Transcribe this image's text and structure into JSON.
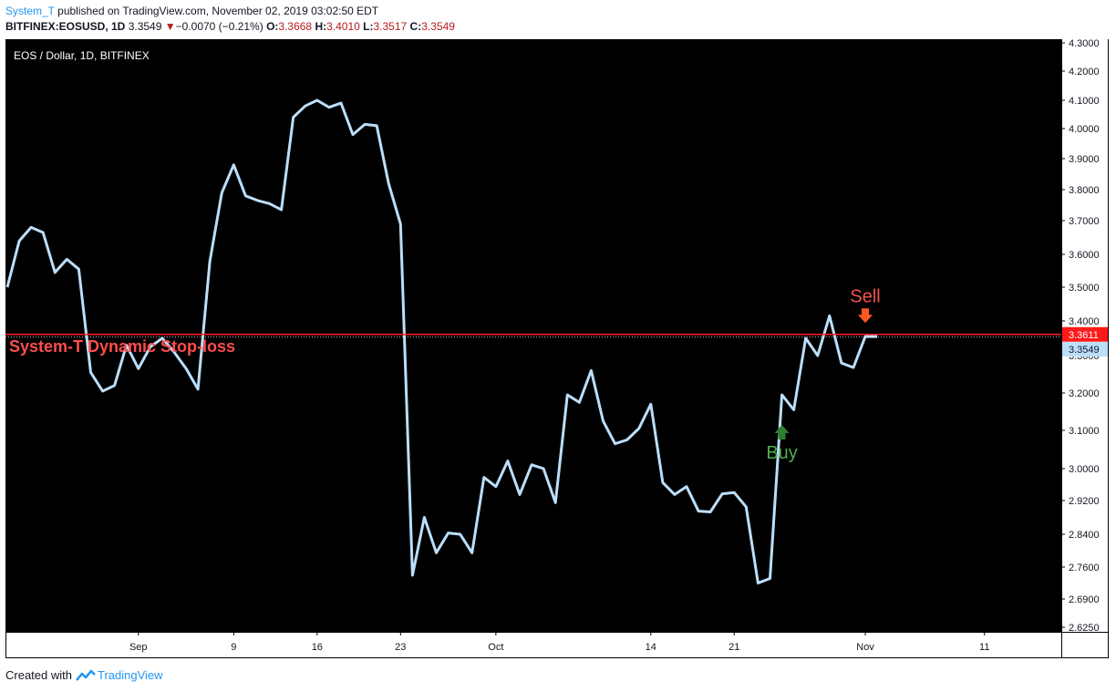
{
  "header": {
    "author": "System_T",
    "published_text": "published on TradingView.com, November 02, 2019 03:02:50 EDT",
    "symbol": "BITFINEX:EOSUSD, 1D",
    "last": "3.3549",
    "arrow": "▼",
    "change": "−0.0070 (−0.21%)",
    "o_label": "O:",
    "o_value": "3.3668",
    "h_label": "H:",
    "h_value": "3.4010",
    "l_label": "L:",
    "l_value": "3.3517",
    "c_label": "C:",
    "c_value": "3.3549"
  },
  "footer": {
    "created_with": "Created with",
    "brand": "TradingView"
  },
  "colors": {
    "background": "#000000",
    "line": "#bbdefb",
    "stoploss": "#ff1a1a",
    "sell": "#ef5350",
    "buy": "#4caf50",
    "axis_text": "#131722",
    "last_price_bg": "#bbdefb"
  },
  "chart_data": {
    "type": "line",
    "legend": "EOS / Dollar, 1D, BITFINEX",
    "y_ticks": [
      "4.3000",
      "4.2000",
      "4.1000",
      "4.0000",
      "3.9000",
      "3.8000",
      "3.7000",
      "3.6000",
      "3.5000",
      "3.4000",
      "3.3000",
      "3.2000",
      "3.1000",
      "3.0000",
      "2.9200",
      "2.8400",
      "2.7600",
      "2.6900",
      "2.6250"
    ],
    "x_ticks": [
      "Sep",
      "9",
      "16",
      "23",
      "Oct",
      "14",
      "21",
      "Nov",
      "11"
    ],
    "series": [
      {
        "values": [
          3.5,
          3.64,
          3.68,
          3.665,
          3.545,
          3.585,
          3.555,
          3.255,
          3.205,
          3.22,
          3.33,
          3.265,
          3.325,
          3.35,
          3.31,
          3.265,
          3.21,
          3.58,
          3.79,
          3.88,
          3.78,
          3.765,
          3.755,
          3.735,
          4.04,
          4.08,
          4.1,
          4.075,
          4.09,
          3.98,
          4.015,
          4.01,
          3.82,
          3.69,
          2.742,
          2.88,
          2.795,
          2.843,
          2.84,
          2.795,
          2.978,
          2.955,
          3.02,
          2.935,
          3.01,
          3.0,
          2.915,
          3.195,
          3.175,
          3.26,
          3.125,
          3.065,
          3.075,
          3.105,
          3.17,
          2.965,
          2.935,
          2.955,
          2.895,
          2.893,
          2.937,
          2.94,
          2.905,
          2.725,
          2.735,
          3.195,
          3.155,
          3.35,
          3.3,
          3.415,
          3.28,
          3.268,
          3.355,
          3.355
        ]
      }
    ],
    "stoploss": {
      "label": "System-T Dynamic Stop-loss",
      "value": 3.3611,
      "value_text": "3.3611"
    },
    "last_price": {
      "value": 3.3549,
      "text": "3.3549"
    },
    "signals": [
      {
        "label": "Buy",
        "index": 65,
        "value": 3.1
      },
      {
        "label": "Sell",
        "index": 72,
        "value": 3.41
      }
    ]
  }
}
